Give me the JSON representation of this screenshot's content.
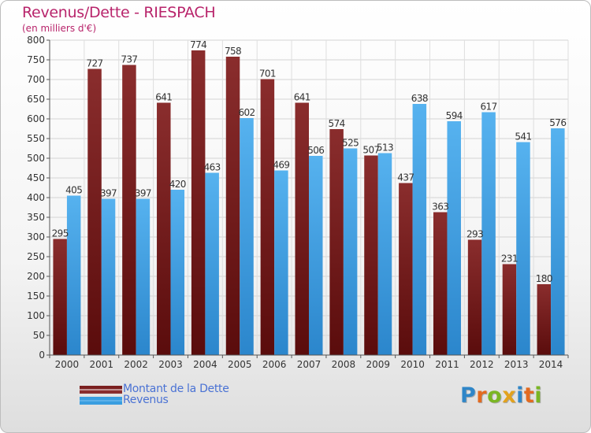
{
  "chart_data": {
    "type": "bar",
    "title": "Revenus/Dette - RIESPACH",
    "subtitle": "(en milliers d'€)",
    "categories": [
      "2000",
      "2001",
      "2002",
      "2003",
      "2004",
      "2005",
      "2006",
      "2007",
      "2008",
      "2009",
      "2010",
      "2011",
      "2012",
      "2013",
      "2014"
    ],
    "series": [
      {
        "name": "Montant de la Dette",
        "color": "#7a1f1f",
        "values": [
          295,
          727,
          737,
          641,
          774,
          758,
          701,
          641,
          574,
          507,
          437,
          363,
          293,
          231,
          180
        ]
      },
      {
        "name": "Revenus",
        "color": "#3a9ee0",
        "values": [
          405,
          397,
          397,
          420,
          463,
          602,
          469,
          506,
          525,
          513,
          638,
          594,
          617,
          541,
          576
        ]
      }
    ],
    "ylim": [
      0,
      800
    ],
    "yticks": [
      0,
      50,
      100,
      150,
      200,
      250,
      300,
      350,
      400,
      450,
      500,
      550,
      600,
      650,
      700,
      750,
      800
    ],
    "grid": true,
    "legend_position": "bottom-left"
  },
  "logo": {
    "text": "Proxiti",
    "colors": [
      "#2f86c8",
      "#e36a1f",
      "#7ab623",
      "#e2a21e",
      "#2f86c8",
      "#e36a1f",
      "#7ab623"
    ]
  }
}
